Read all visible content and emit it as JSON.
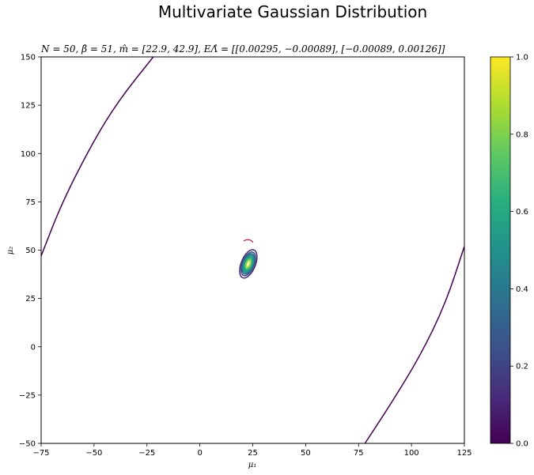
{
  "chart_data": {
    "type": "contour",
    "title": "Multivariate Gaussian Distribution",
    "subtitle": "N = 50, β̂ = 51, m̂ = [22.9, 42.9], EΛ̂ = [[0.00295, −0.00089], [−0.00089, 0.00126]]",
    "xlabel": "μ₁",
    "ylabel": "μ₂",
    "xlim": [
      -75,
      125
    ],
    "ylim": [
      -50,
      150
    ],
    "xticks": [
      -75,
      -50,
      -25,
      0,
      25,
      50,
      75,
      100,
      125
    ],
    "yticks": [
      -50,
      -25,
      0,
      25,
      50,
      75,
      100,
      125,
      150
    ],
    "mean": [
      22.9,
      42.9
    ],
    "contour_levels": [
      0.1,
      0.2,
      0.3,
      0.4,
      0.5,
      0.6,
      0.7,
      0.8,
      0.9
    ],
    "outer_curves": [
      {
        "points": [
          [
            -75,
            47
          ],
          [
            -65,
            75
          ],
          [
            -50,
            107
          ],
          [
            -38,
            128
          ],
          [
            -22,
            150
          ]
        ]
      },
      {
        "points": [
          [
            78,
            -50
          ],
          [
            90,
            -30
          ],
          [
            104,
            -5
          ],
          [
            116,
            22
          ],
          [
            125,
            52
          ]
        ]
      }
    ],
    "colorbar": {
      "colormap": "viridis",
      "min": 0.0,
      "max": 1.0,
      "ticks": [
        "0.0",
        "0.2",
        "0.4",
        "0.6",
        "0.8",
        "1.0"
      ]
    },
    "grid": false
  }
}
